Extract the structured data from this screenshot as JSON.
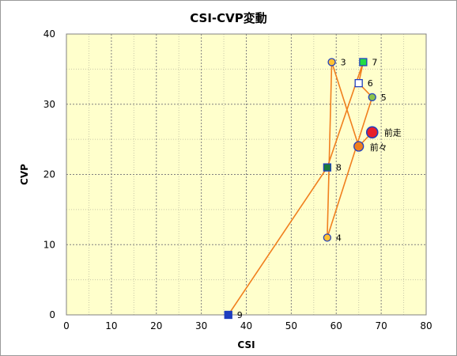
{
  "chart_data": {
    "type": "scatter",
    "title": "CSI-CVP変動",
    "xlabel": "CSI",
    "ylabel": "CVP",
    "xlim": [
      0,
      80
    ],
    "ylim": [
      0,
      40
    ],
    "xticks": [
      0,
      10,
      20,
      30,
      40,
      50,
      60,
      70,
      80
    ],
    "yticks": [
      0,
      10,
      20,
      30,
      40
    ],
    "grid": true,
    "colors": {
      "plot_background": "#ffffcc",
      "line": "#f07f1e",
      "grid": "#808080"
    },
    "path_order": [
      "前走",
      "前々",
      "3",
      "4",
      "5",
      "6",
      "7",
      "8",
      "9"
    ],
    "points": [
      {
        "label": "前走",
        "x": 68,
        "y": 26,
        "marker": "circle-large",
        "fill": "#e8202a",
        "stroke": "#1f3fbf"
      },
      {
        "label": "前々",
        "x": 65,
        "y": 24,
        "marker": "circle",
        "fill": "#f07f1e",
        "stroke": "#1f3fbf"
      },
      {
        "label": "3",
        "x": 59,
        "y": 36,
        "marker": "circle-small",
        "fill": "#ffc133",
        "stroke": "#1f3fbf"
      },
      {
        "label": "4",
        "x": 58,
        "y": 11,
        "marker": "circle-small",
        "fill": "#ffc133",
        "stroke": "#1f3fbf"
      },
      {
        "label": "5",
        "x": 68,
        "y": 31,
        "marker": "circle-small",
        "fill": "#8bc34a",
        "stroke": "#1f3fbf"
      },
      {
        "label": "6",
        "x": 65,
        "y": 33,
        "marker": "square",
        "fill": "#ffffff",
        "stroke": "#1f3fbf"
      },
      {
        "label": "7",
        "x": 66,
        "y": 36,
        "marker": "square",
        "fill": "#22dd44",
        "stroke": "#1f3fbf"
      },
      {
        "label": "8",
        "x": 58,
        "y": 21,
        "marker": "square",
        "fill": "#1a7a3a",
        "stroke": "#1f3fbf"
      },
      {
        "label": "9",
        "x": 36,
        "y": 0,
        "marker": "square",
        "fill": "#1f3fbf",
        "stroke": "#1f3fbf"
      }
    ]
  }
}
